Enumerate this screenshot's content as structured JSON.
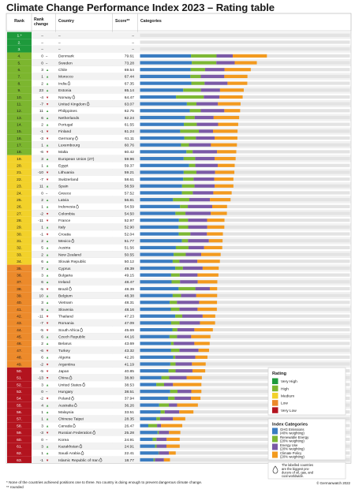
{
  "title": "Climate Change Performance Index 2023 – Rating table",
  "footnotes": [
    "* None of the countries achieved positions one to three. No country is doing enough to prevent dangerous climate change.",
    "** rounded"
  ],
  "copyright": "© Germanwatch 2022",
  "chart_data": {
    "type": "table",
    "headers": {
      "rank": "Rank",
      "change": "Rank change",
      "country": "Country",
      "score": "Score**",
      "categories": "Categories"
    },
    "category_names": [
      "GHG Emissions",
      "Renewable Energy",
      "Energy Use",
      "Climate Policy"
    ],
    "category_colors": [
      "#3a7cc1",
      "#7db734",
      "#7b5aa6",
      "#f29a1f"
    ],
    "rating_colors": {
      "Very High": "#1e9a3c",
      "High": "#7cb62f",
      "Medium": "#f2d12a",
      "Low": "#ec8a2b",
      "Very Low": "#b3141f"
    },
    "rows": [
      {
        "rank": "1.*",
        "change": "–",
        "country": "–",
        "score": "–",
        "rating": "Very High",
        "parts": []
      },
      {
        "rank": "2.",
        "change": "–",
        "country": "–",
        "score": "–",
        "rating": "Very High",
        "parts": []
      },
      {
        "rank": "3.",
        "change": "–",
        "country": "–",
        "score": "–",
        "rating": "Very High",
        "parts": []
      },
      {
        "rank": "4.",
        "change": "0 –",
        "country": "Denmark",
        "score": "79.61",
        "rating": "High",
        "parts": [
          32.0,
          16.0,
          10.2,
          21.4
        ]
      },
      {
        "rank": "5.",
        "change": "0 –",
        "country": "Sweden",
        "score": "73.28",
        "rating": "High",
        "parts": [
          32.5,
          15.4,
          11.5,
          13.9
        ]
      },
      {
        "rank": "6.",
        "change": "3 ▲",
        "country": "Chile",
        "score": "69.54",
        "rating": "High",
        "parts": [
          31.8,
          9.0,
          12.2,
          16.5
        ]
      },
      {
        "rank": "7.",
        "change": "1 ▲",
        "country": "Morocco",
        "score": "67.44",
        "rating": "High",
        "parts": [
          31.6,
          6.5,
          14.8,
          14.5
        ]
      },
      {
        "rank": "8.",
        "change": "2 ▲",
        "country": "India",
        "oil": true,
        "score": "67.35",
        "rating": "High",
        "parts": [
          32.2,
          8.3,
          14.4,
          12.4
        ]
      },
      {
        "rank": "9.",
        "change": "23 ▲",
        "country": "Estonia",
        "score": "65.14",
        "rating": "High",
        "parts": [
          27.1,
          11.1,
          12.0,
          14.9
        ]
      },
      {
        "rank": "10.",
        "change": "-4 ▼",
        "country": "Norway",
        "oil": true,
        "score": "64.47",
        "rating": "High",
        "parts": [
          22.6,
          17.4,
          9.9,
          14.5
        ]
      },
      {
        "rank": "11.",
        "change": "-7 ▼",
        "country": "United Kingdom",
        "oil": true,
        "score": "63.07",
        "rating": "High",
        "parts": [
          29.4,
          6.0,
          13.5,
          14.2
        ]
      },
      {
        "rank": "12.",
        "change": "11 ▲",
        "country": "Philippines",
        "score": "62.75",
        "rating": "High",
        "parts": [
          31.2,
          6.9,
          14.8,
          9.9
        ]
      },
      {
        "rank": "13.",
        "change": "6 ▲",
        "country": "Netherlands",
        "score": "62.24",
        "rating": "High",
        "parts": [
          28.4,
          5.9,
          11.9,
          16.0
        ]
      },
      {
        "rank": "14.",
        "change": "2 ▲",
        "country": "Portugal",
        "score": "61.55",
        "rating": "High",
        "parts": [
          27.5,
          8.1,
          13.4,
          12.6
        ]
      },
      {
        "rank": "15.",
        "change": "-1 ▼",
        "country": "Finland",
        "score": "61.24",
        "rating": "High",
        "parts": [
          25.2,
          11.7,
          8.9,
          15.4
        ]
      },
      {
        "rank": "16.",
        "change": "-3 ▼",
        "country": "Germany",
        "oil": true,
        "score": "61.11",
        "rating": "High",
        "parts": [
          27.8,
          7.2,
          11.8,
          14.3
        ]
      },
      {
        "rank": "17.",
        "change": "1 ▲",
        "country": "Luxembourg",
        "score": "60.76",
        "rating": "High",
        "parts": [
          25.7,
          5.0,
          13.8,
          16.3
        ]
      },
      {
        "rank": "18.",
        "change": "-6 ▼",
        "country": "Malta",
        "score": "60.42",
        "rating": "High",
        "parts": [
          29.1,
          3.9,
          15.3,
          12.1
        ]
      },
      {
        "rank": "19.",
        "change": "3 ▲",
        "country": "European Union (27)",
        "score": "59.96",
        "rating": "Medium",
        "parts": [
          27.4,
          7.2,
          12.2,
          13.2
        ]
      },
      {
        "rank": "20.",
        "change": "1 ▲",
        "country": "Egypt",
        "score": "59.37",
        "rating": "Medium",
        "parts": [
          30.8,
          3.9,
          14.1,
          10.6
        ]
      },
      {
        "rank": "21.",
        "change": "-10 ▼",
        "country": "Lithuania",
        "score": "59.21",
        "rating": "Medium",
        "parts": [
          27.4,
          8.0,
          11.7,
          12.1
        ]
      },
      {
        "rank": "22.",
        "change": "-7 ▼",
        "country": "Switzerland",
        "score": "58.61",
        "rating": "Medium",
        "parts": [
          27.1,
          6.5,
          13.0,
          12.0
        ]
      },
      {
        "rank": "23.",
        "change": "11 ▲",
        "country": "Spain",
        "score": "58.59",
        "rating": "Medium",
        "parts": [
          26.4,
          7.8,
          12.6,
          11.8
        ]
      },
      {
        "rank": "24.",
        "change": "0 –",
        "country": "Greece",
        "score": "57.52",
        "rating": "Medium",
        "parts": [
          26.3,
          6.8,
          12.9,
          11.5
        ]
      },
      {
        "rank": "25.",
        "change": "2 ▲",
        "country": "Latvia",
        "score": "56.81",
        "rating": "Medium",
        "parts": [
          20.7,
          10.2,
          13.0,
          12.9
        ]
      },
      {
        "rank": "26.",
        "change": "1 ▲",
        "country": "Indonesia",
        "oil": true,
        "score": "54.59",
        "rating": "Medium",
        "parts": [
          25.1,
          4.9,
          15.3,
          9.3
        ]
      },
      {
        "rank": "27.",
        "change": "-2 ▼",
        "country": "Colombia",
        "score": "54.50",
        "rating": "Medium",
        "parts": [
          22.2,
          6.3,
          15.9,
          10.1
        ]
      },
      {
        "rank": "28.",
        "change": "-11 ▼",
        "country": "France",
        "score": "52.97",
        "rating": "Medium",
        "parts": [
          24.4,
          5.7,
          12.0,
          10.9
        ]
      },
      {
        "rank": "29.",
        "change": "1 ▲",
        "country": "Italy",
        "score": "52.90",
        "rating": "Medium",
        "parts": [
          24.2,
          6.0,
          12.0,
          10.7
        ]
      },
      {
        "rank": "30.",
        "change": "-1 ▼",
        "country": "Croatia",
        "score": "52.04",
        "rating": "Medium",
        "parts": [
          24.3,
          7.3,
          10.4,
          10.0
        ]
      },
      {
        "rank": "31.",
        "change": "2 ▲",
        "country": "Mexico",
        "oil": true,
        "score": "51.77",
        "rating": "Medium",
        "parts": [
          26.3,
          3.8,
          13.1,
          8.6
        ]
      },
      {
        "rank": "32.",
        "change": "5 ▲",
        "country": "Austria",
        "score": "51.56",
        "rating": "Medium",
        "parts": [
          22.5,
          7.9,
          9.8,
          11.4
        ]
      },
      {
        "rank": "33.",
        "change": "2 ▲",
        "country": "New Zealand",
        "score": "50.55",
        "rating": "Medium",
        "parts": [
          21.1,
          7.6,
          9.7,
          12.2
        ]
      },
      {
        "rank": "34.",
        "change": "6 ▲",
        "country": "Slovak Republic",
        "score": "50.12",
        "rating": "Medium",
        "parts": [
          20.5,
          4.2,
          11.3,
          14.1
        ]
      },
      {
        "rank": "35.",
        "change": "7 ▲",
        "country": "Cyprus",
        "score": "49.39",
        "rating": "Low",
        "parts": [
          22.1,
          4.8,
          12.4,
          10.1
        ]
      },
      {
        "rank": "36.",
        "change": "3 ▲",
        "country": "Bulgaria",
        "score": "49.15",
        "rating": "Low",
        "parts": [
          19.5,
          5.4,
          11.2,
          13.1
        ]
      },
      {
        "rank": "37.",
        "change": "6 ▲",
        "country": "Ireland",
        "score": "48.47",
        "rating": "Low",
        "parts": [
          19.8,
          5.3,
          11.1,
          12.3
        ]
      },
      {
        "rank": "38.",
        "change": "-5 ▼",
        "country": "Brazil",
        "oil": true,
        "score": "48.39",
        "rating": "Low",
        "parts": [
          24.2,
          10.5,
          9.1,
          4.6
        ]
      },
      {
        "rank": "39.",
        "change": "10 ▲",
        "country": "Belgium",
        "score": "48.38",
        "rating": "Low",
        "parts": [
          20.5,
          5.2,
          9.6,
          13.1
        ]
      },
      {
        "rank": "40.",
        "change": "3 ▲",
        "country": "Vietnam",
        "score": "48.31",
        "rating": "Low",
        "parts": [
          18.6,
          4.6,
          13.9,
          11.2
        ]
      },
      {
        "rank": "41.",
        "change": "9 ▲",
        "country": "Slovenia",
        "score": "48.16",
        "rating": "Low",
        "parts": [
          19.3,
          5.4,
          11.4,
          12.1
        ]
      },
      {
        "rank": "42.",
        "change": "-11 ▼",
        "country": "Thailand",
        "score": "47.23",
        "rating": "Low",
        "parts": [
          22.1,
          4.4,
          12.8,
          7.9
        ]
      },
      {
        "rank": "43.",
        "change": "-7 ▼",
        "country": "Romania",
        "score": "47.09",
        "rating": "Low",
        "parts": [
          19.5,
          5.3,
          12.8,
          9.5
        ]
      },
      {
        "rank": "44.",
        "change": "-5 ▼",
        "country": "South Africa",
        "oil": true,
        "score": "45.69",
        "rating": "Low",
        "parts": [
          20.3,
          3.1,
          10.7,
          11.6
        ]
      },
      {
        "rank": "45.",
        "change": "6 ▲",
        "country": "Czech Republic",
        "score": "44.16",
        "rating": "Low",
        "parts": [
          18.5,
          4.7,
          8.9,
          12.1
        ]
      },
      {
        "rank": "46.",
        "change": "2 ▲",
        "country": "Belarus",
        "score": "43.69",
        "rating": "Low",
        "parts": [
          19.4,
          1.7,
          13.0,
          9.6
        ]
      },
      {
        "rank": "47.",
        "change": "-6 ▼",
        "country": "Turkey",
        "score": "43.32",
        "rating": "Low",
        "parts": [
          19.5,
          5.2,
          12.0,
          6.6
        ]
      },
      {
        "rank": "48.",
        "change": "6 ▲",
        "country": "Algeria",
        "score": "42.26",
        "rating": "Low",
        "parts": [
          20.8,
          1.3,
          12.6,
          7.6
        ]
      },
      {
        "rank": "49.",
        "change": "-2 ▼",
        "country": "Argentina",
        "score": "41.19",
        "rating": "Low",
        "parts": [
          19.0,
          3.3,
          10.3,
          8.6
        ]
      },
      {
        "rank": "50.",
        "change": "-5 ▼",
        "country": "Japan",
        "score": "40.85",
        "rating": "Very Low",
        "parts": [
          17.9,
          4.4,
          10.6,
          8.0
        ]
      },
      {
        "rank": "51.",
        "change": "-13 ▼",
        "country": "China",
        "oil": true,
        "score": "38.80",
        "rating": "Very Low",
        "parts": [
          13.4,
          4.9,
          10.9,
          9.6
        ]
      },
      {
        "rank": "52.",
        "change": "3 ▲",
        "country": "United States",
        "oil": true,
        "score": "38.53",
        "rating": "Very Low",
        "parts": [
          10.2,
          4.9,
          5.6,
          17.8
        ]
      },
      {
        "rank": "53.",
        "change": "0 –",
        "country": "Hungary",
        "score": "38.51",
        "rating": "Very Low",
        "parts": [
          18.9,
          4.6,
          8.7,
          6.3
        ]
      },
      {
        "rank": "54.",
        "change": "-2 ▼",
        "country": "Poland",
        "oil": true,
        "score": "37.94",
        "rating": "Very Low",
        "parts": [
          17.6,
          4.1,
          10.3,
          5.9
        ]
      },
      {
        "rank": "55.",
        "change": "4 ▲",
        "country": "Australia",
        "oil": true,
        "score": "36.26",
        "rating": "Very Low",
        "parts": [
          12.0,
          6.1,
          5.2,
          13.0
        ]
      },
      {
        "rank": "56.",
        "change": "1 ▲",
        "country": "Malaysia",
        "score": "33.51",
        "rating": "Very Low",
        "parts": [
          12.9,
          2.6,
          9.1,
          8.9
        ]
      },
      {
        "rank": "57.",
        "change": "1 ▲",
        "country": "Chinese Taipei",
        "score": "28.35",
        "rating": "Very Low",
        "parts": [
          10.3,
          2.3,
          8.1,
          7.7
        ]
      },
      {
        "rank": "58.",
        "change": "3 ▲",
        "country": "Canada",
        "oil": true,
        "score": "26.47",
        "rating": "Very Low",
        "parts": [
          5.2,
          5.5,
          2.5,
          13.3
        ]
      },
      {
        "rank": "59.",
        "change": "-3 ▼",
        "country": "Russian Federation",
        "oil": true,
        "score": "25.28",
        "rating": "Very Low",
        "parts": [
          11.0,
          0.8,
          6.4,
          7.1
        ]
      },
      {
        "rank": "60.",
        "change": "0 –",
        "country": "Korea",
        "score": "24.91",
        "rating": "Very Low",
        "parts": [
          7.9,
          2.4,
          6.4,
          8.2
        ]
      },
      {
        "rank": "61.",
        "change": "3 ▲",
        "country": "Kazakhstan",
        "oil": true,
        "score": "24.91",
        "rating": "Very Low",
        "parts": [
          9.4,
          1.0,
          6.2,
          8.3
        ]
      },
      {
        "rank": "62.",
        "change": "1 ▲",
        "country": "Saudi Arabia",
        "oil": true,
        "score": "22.41",
        "rating": "Very Low",
        "parts": [
          11.6,
          0.3,
          6.2,
          4.3
        ]
      },
      {
        "rank": "63.",
        "change": "-1 ▼",
        "country": "Islamic Republic of Iran",
        "oil": true,
        "score": "18.77",
        "rating": "Very Low",
        "parts": [
          8.5,
          0.8,
          5.7,
          3.8
        ]
      }
    ]
  },
  "legend": {
    "rating_title": "Rating",
    "rating_items": [
      {
        "label": "Very High",
        "color": "#1e9a3c"
      },
      {
        "label": "High",
        "color": "#7cb62f"
      },
      {
        "label": "Medium",
        "color": "#f2d12a"
      },
      {
        "label": "Low",
        "color": "#ec8a2b"
      },
      {
        "label": "Very Low",
        "color": "#b3141f"
      }
    ],
    "categories_title": "Index Categories",
    "category_items": [
      {
        "lines": [
          "GHG Emissions",
          "(40% weighting)"
        ],
        "color": "#3a7cc1"
      },
      {
        "lines": [
          "Renewable Energy",
          "(20% weighting)"
        ],
        "color": "#7db734"
      },
      {
        "lines": [
          "Energy Use",
          "(20% weighting)"
        ],
        "color": "#7b5aa6"
      },
      {
        "lines": [
          "Climate Policy",
          "(20% weighting)"
        ],
        "color": "#f29a1f"
      }
    ],
    "note_lines": [
      "The labelled countries",
      "are the biggest pro-",
      "ducers of oil, gas, and",
      "coal worldwide."
    ],
    "note_icon": "oil-drop-icon"
  }
}
